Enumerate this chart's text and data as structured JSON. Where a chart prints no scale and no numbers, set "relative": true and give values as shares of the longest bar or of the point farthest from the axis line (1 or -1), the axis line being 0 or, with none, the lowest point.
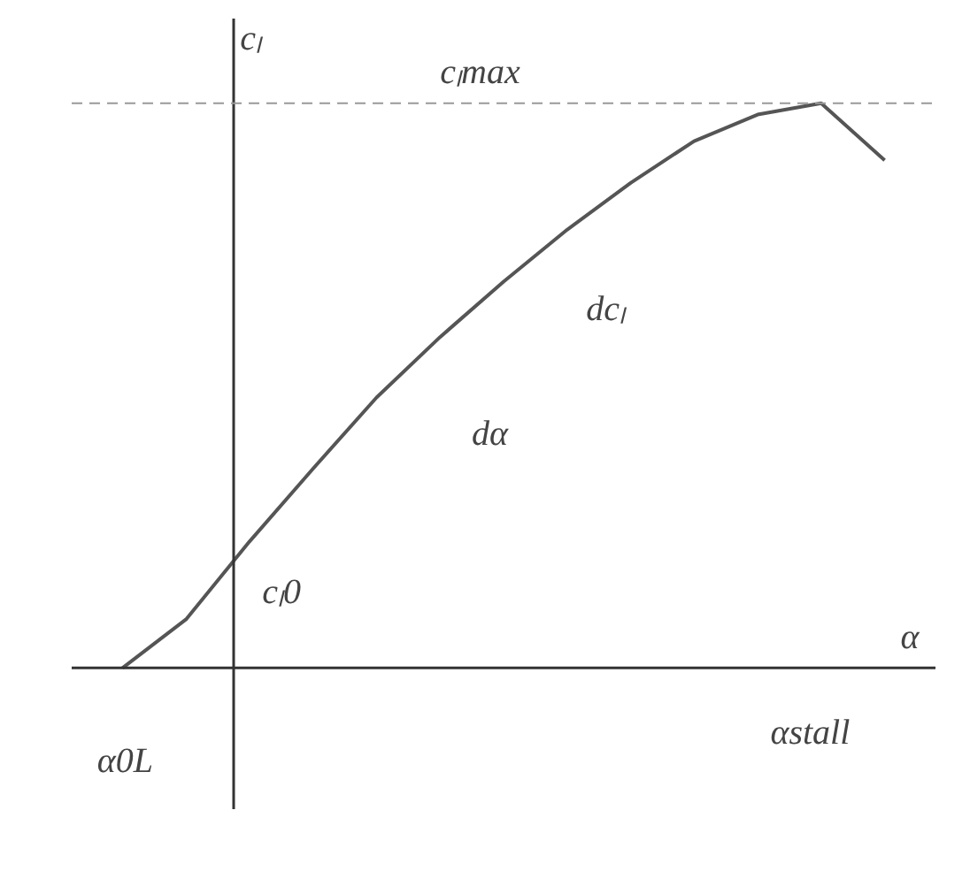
{
  "chart_data": {
    "type": "line",
    "relative": true,
    "xlabel": "α",
    "ylabel": "cₗ",
    "categories": [
      null,
      null,
      null,
      null,
      null,
      null,
      null,
      null,
      null,
      null,
      null,
      null,
      null
    ],
    "series": [
      {
        "color": "#555555",
        "values": [
          0,
          0.086,
          0.224,
          0.353,
          0.479,
          0.586,
          0.684,
          0.776,
          0.859,
          0.933,
          0.98,
          1.0,
          0.899
        ]
      }
    ],
    "ref_lines": [
      {
        "axis": "y",
        "value": 1.0,
        "label": "cₗmax",
        "line_style": "dashed",
        "color": "#999999"
      }
    ],
    "annotations": [
      "dcₗ",
      "dα",
      "cₗ0",
      "α0L",
      "αstall"
    ],
    "grid": false,
    "marker": "none",
    "line_style": "solid"
  }
}
